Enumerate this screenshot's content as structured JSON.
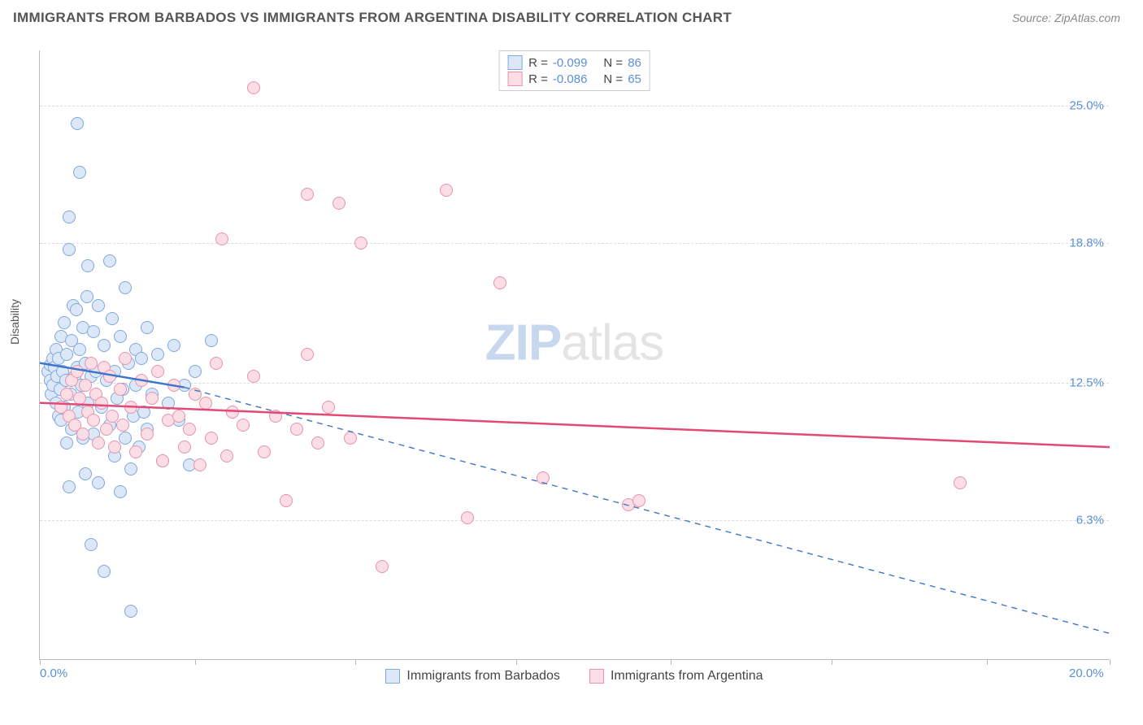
{
  "header": {
    "title": "IMMIGRANTS FROM BARBADOS VS IMMIGRANTS FROM ARGENTINA DISABILITY CORRELATION CHART",
    "source": "Source: ZipAtlas.com"
  },
  "chart": {
    "type": "scatter",
    "ylabel": "Disability",
    "xlim": [
      0,
      20
    ],
    "ylim": [
      0,
      27.5
    ],
    "xticks_pct": [
      0,
      14.5,
      29.5,
      44.5,
      59,
      74,
      88.5,
      100
    ],
    "xaxis_labels": [
      {
        "text": "0.0%",
        "pos_pct": 0
      },
      {
        "text": "20.0%",
        "pos_pct": 100
      }
    ],
    "yaxis_labels": [
      {
        "text": "6.3%",
        "val": 6.3
      },
      {
        "text": "12.5%",
        "val": 12.5
      },
      {
        "text": "18.8%",
        "val": 18.8
      },
      {
        "text": "25.0%",
        "val": 25.0
      }
    ],
    "grid_color": "#dcdcdc",
    "axis_color": "#b9b9b9",
    "background_color": "#ffffff",
    "point_radius": 8,
    "point_stroke_width": 1.2,
    "watermark": {
      "zip": "ZIP",
      "rest": "atlas"
    },
    "series": [
      {
        "name": "Immigrants from Barbados",
        "fill": "#dce8f8",
        "stroke": "#7fa8de",
        "line_color": "#3d76c8",
        "R": "-0.099",
        "N": "86",
        "trend": {
          "x1": 0.0,
          "y1": 13.4,
          "x2": 2.7,
          "y2": 12.3,
          "dash_x2": 20.0,
          "dash_y2": 1.2
        },
        "points": [
          [
            0.15,
            13.0
          ],
          [
            0.2,
            12.6
          ],
          [
            0.2,
            13.3
          ],
          [
            0.22,
            12.0
          ],
          [
            0.25,
            13.6
          ],
          [
            0.25,
            12.4
          ],
          [
            0.28,
            13.2
          ],
          [
            0.3,
            11.6
          ],
          [
            0.3,
            14.0
          ],
          [
            0.32,
            12.8
          ],
          [
            0.35,
            11.0
          ],
          [
            0.35,
            13.6
          ],
          [
            0.38,
            12.2
          ],
          [
            0.4,
            14.6
          ],
          [
            0.4,
            10.8
          ],
          [
            0.42,
            13.0
          ],
          [
            0.45,
            11.4
          ],
          [
            0.45,
            15.2
          ],
          [
            0.48,
            12.6
          ],
          [
            0.5,
            13.8
          ],
          [
            0.5,
            9.8
          ],
          [
            0.55,
            20.0
          ],
          [
            0.55,
            18.5
          ],
          [
            0.55,
            7.8
          ],
          [
            0.58,
            12.0
          ],
          [
            0.6,
            14.4
          ],
          [
            0.6,
            10.4
          ],
          [
            0.62,
            16.0
          ],
          [
            0.65,
            12.8
          ],
          [
            0.68,
            15.8
          ],
          [
            0.7,
            13.2
          ],
          [
            0.7,
            24.2
          ],
          [
            0.72,
            11.2
          ],
          [
            0.75,
            14.0
          ],
          [
            0.75,
            22.0
          ],
          [
            0.78,
            12.4
          ],
          [
            0.8,
            10.0
          ],
          [
            0.8,
            15.0
          ],
          [
            0.85,
            13.4
          ],
          [
            0.85,
            8.4
          ],
          [
            0.88,
            16.4
          ],
          [
            0.9,
            11.6
          ],
          [
            0.9,
            17.8
          ],
          [
            0.95,
            12.8
          ],
          [
            0.95,
            5.2
          ],
          [
            1.0,
            14.8
          ],
          [
            1.0,
            10.2
          ],
          [
            1.05,
            13.0
          ],
          [
            1.1,
            16.0
          ],
          [
            1.1,
            8.0
          ],
          [
            1.15,
            11.4
          ],
          [
            1.2,
            14.2
          ],
          [
            1.2,
            4.0
          ],
          [
            1.25,
            12.6
          ],
          [
            1.3,
            10.6
          ],
          [
            1.3,
            18.0
          ],
          [
            1.35,
            15.4
          ],
          [
            1.4,
            13.0
          ],
          [
            1.4,
            9.2
          ],
          [
            1.45,
            11.8
          ],
          [
            1.5,
            14.6
          ],
          [
            1.5,
            7.6
          ],
          [
            1.55,
            12.2
          ],
          [
            1.6,
            10.0
          ],
          [
            1.6,
            16.8
          ],
          [
            1.65,
            13.4
          ],
          [
            1.7,
            8.6
          ],
          [
            1.7,
            2.2
          ],
          [
            1.75,
            11.0
          ],
          [
            1.8,
            14.0
          ],
          [
            1.8,
            12.4
          ],
          [
            1.85,
            9.6
          ],
          [
            1.9,
            13.6
          ],
          [
            1.95,
            11.2
          ],
          [
            2.0,
            10.4
          ],
          [
            2.0,
            15.0
          ],
          [
            2.1,
            12.0
          ],
          [
            2.2,
            13.8
          ],
          [
            2.3,
            9.0
          ],
          [
            2.4,
            11.6
          ],
          [
            2.5,
            14.2
          ],
          [
            2.6,
            10.8
          ],
          [
            2.7,
            12.4
          ],
          [
            2.8,
            8.8
          ],
          [
            2.9,
            13.0
          ],
          [
            3.2,
            14.4
          ]
        ]
      },
      {
        "name": "Immigrants from Argentina",
        "fill": "#fadde5",
        "stroke": "#e893ab",
        "line_color": "#e24a76",
        "R": "-0.086",
        "N": "65",
        "trend": {
          "x1": 0.0,
          "y1": 11.6,
          "x2": 20.0,
          "y2": 9.6
        },
        "points": [
          [
            0.4,
            11.4
          ],
          [
            0.5,
            12.0
          ],
          [
            0.55,
            11.0
          ],
          [
            0.6,
            12.6
          ],
          [
            0.65,
            10.6
          ],
          [
            0.7,
            13.0
          ],
          [
            0.75,
            11.8
          ],
          [
            0.8,
            10.2
          ],
          [
            0.85,
            12.4
          ],
          [
            0.9,
            11.2
          ],
          [
            0.95,
            13.4
          ],
          [
            1.0,
            10.8
          ],
          [
            1.05,
            12.0
          ],
          [
            1.1,
            9.8
          ],
          [
            1.15,
            11.6
          ],
          [
            1.2,
            13.2
          ],
          [
            1.25,
            10.4
          ],
          [
            1.3,
            12.8
          ],
          [
            1.35,
            11.0
          ],
          [
            1.4,
            9.6
          ],
          [
            1.5,
            12.2
          ],
          [
            1.55,
            10.6
          ],
          [
            1.6,
            13.6
          ],
          [
            1.7,
            11.4
          ],
          [
            1.8,
            9.4
          ],
          [
            1.9,
            12.6
          ],
          [
            2.0,
            10.2
          ],
          [
            2.1,
            11.8
          ],
          [
            2.2,
            13.0
          ],
          [
            2.3,
            9.0
          ],
          [
            2.4,
            10.8
          ],
          [
            2.5,
            12.4
          ],
          [
            2.6,
            11.0
          ],
          [
            2.7,
            9.6
          ],
          [
            2.8,
            10.4
          ],
          [
            2.9,
            12.0
          ],
          [
            3.0,
            8.8
          ],
          [
            3.1,
            11.6
          ],
          [
            3.2,
            10.0
          ],
          [
            3.3,
            13.4
          ],
          [
            3.4,
            19.0
          ],
          [
            3.5,
            9.2
          ],
          [
            3.6,
            11.2
          ],
          [
            3.8,
            10.6
          ],
          [
            4.0,
            12.8
          ],
          [
            4.0,
            25.8
          ],
          [
            4.2,
            9.4
          ],
          [
            4.4,
            11.0
          ],
          [
            4.6,
            7.2
          ],
          [
            4.8,
            10.4
          ],
          [
            5.0,
            13.8
          ],
          [
            5.0,
            21.0
          ],
          [
            5.2,
            9.8
          ],
          [
            5.4,
            11.4
          ],
          [
            5.6,
            20.6
          ],
          [
            5.8,
            10.0
          ],
          [
            6.0,
            18.8
          ],
          [
            6.4,
            4.2
          ],
          [
            7.6,
            21.2
          ],
          [
            8.0,
            6.4
          ],
          [
            8.6,
            17.0
          ],
          [
            9.4,
            8.2
          ],
          [
            11.0,
            7.0
          ],
          [
            11.2,
            7.2
          ],
          [
            17.2,
            8.0
          ]
        ]
      }
    ],
    "legend_bottom": [
      {
        "label": "Immigrants from Barbados",
        "fill": "#dce8f8",
        "stroke": "#7fa8de"
      },
      {
        "label": "Immigrants from Argentina",
        "fill": "#fadde5",
        "stroke": "#e893ab"
      }
    ]
  }
}
